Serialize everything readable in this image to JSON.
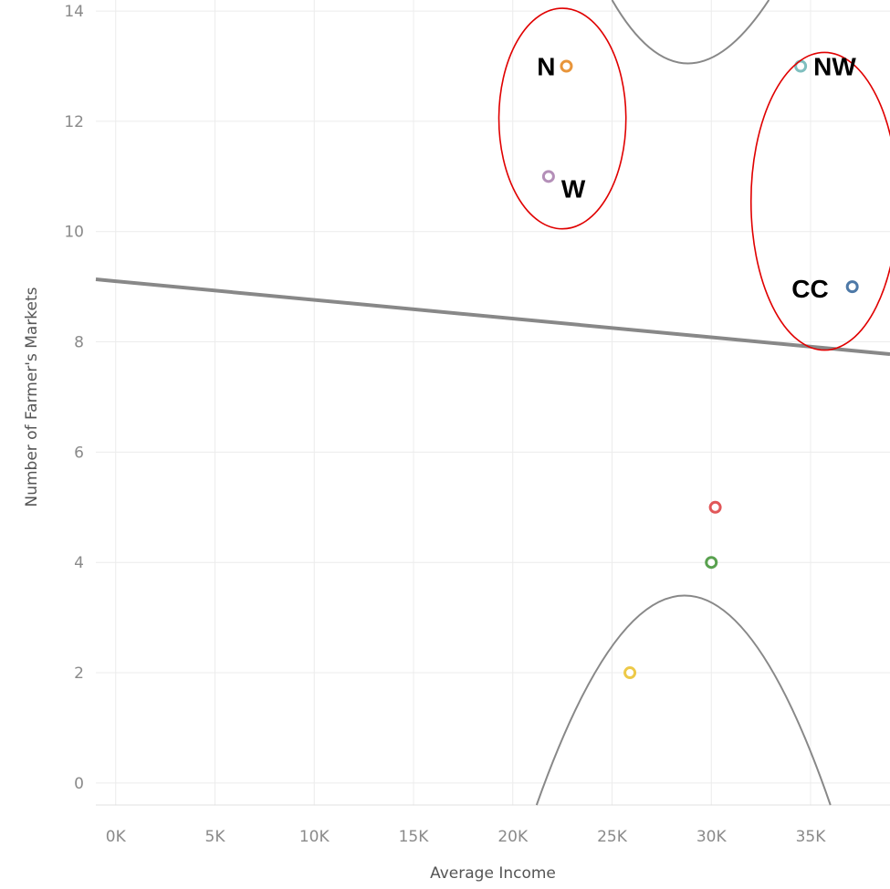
{
  "chart_data": {
    "type": "scatter",
    "xlabel": "Average Income",
    "ylabel": "Number of Farmer's Markets",
    "xlim": [
      -1000,
      39000
    ],
    "ylim": [
      -0.4,
      14.2
    ],
    "x_ticks": [
      0,
      5000,
      10000,
      15000,
      20000,
      25000,
      30000,
      35000
    ],
    "x_tick_labels": [
      "0K",
      "5K",
      "10K",
      "15K",
      "20K",
      "25K",
      "30K",
      "35K"
    ],
    "y_ticks": [
      0,
      2,
      4,
      6,
      8,
      10,
      12,
      14
    ],
    "y_tick_labels": [
      "0",
      "2",
      "4",
      "6",
      "8",
      "10",
      "12",
      "14"
    ],
    "grid": true,
    "points": [
      {
        "x": 22700,
        "y": 13,
        "color": "#e8953a",
        "label": "N"
      },
      {
        "x": 21800,
        "y": 11,
        "color": "#b48fb8",
        "label": "W"
      },
      {
        "x": 34500,
        "y": 13,
        "color": "#7fbfbf",
        "label": "NW"
      },
      {
        "x": 37100,
        "y": 9,
        "color": "#4e79a7",
        "label": "CC"
      },
      {
        "x": 30200,
        "y": 5,
        "color": "#e15759",
        "label": ""
      },
      {
        "x": 30000,
        "y": 4,
        "color": "#59a14f",
        "label": ""
      },
      {
        "x": 25900,
        "y": 2,
        "color": "#edc948",
        "label": ""
      }
    ],
    "trend_line": {
      "intercept": 9.1,
      "slope_per_unit": -3.39e-05,
      "color": "#888888"
    },
    "confidence_band": {
      "center_x": 28700,
      "upper": {
        "vertex_y": 13.05,
        "x_at_top": [
          25000,
          32900
        ],
        "y_at_top": 14.2
      },
      "lower": {
        "vertex_y": 3.4,
        "x_at_bottom": [
          21200,
          36000
        ],
        "y_at_bottom": -0.4
      },
      "color": "#888888"
    },
    "highlight_ellipses": [
      {
        "cx": 22500,
        "cy": 12.05,
        "rx": 3200,
        "ry": 2.0,
        "color": "#e00000"
      },
      {
        "cx": 35700,
        "cy": 10.55,
        "rx": 3700,
        "ry": 2.7,
        "color": "#e00000"
      }
    ]
  }
}
